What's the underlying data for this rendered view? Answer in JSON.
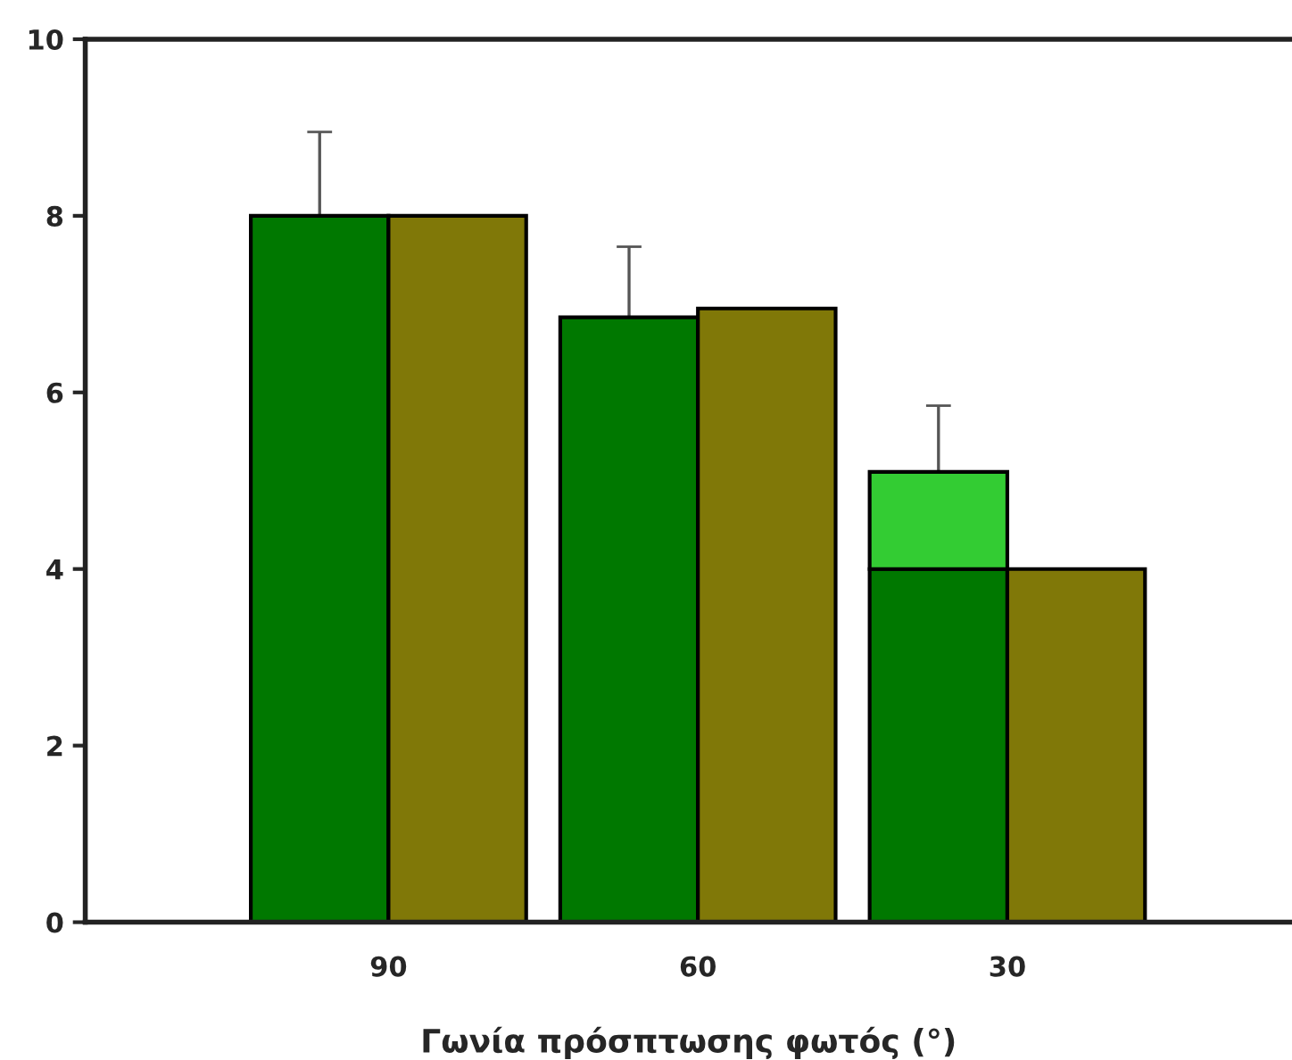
{
  "chart_data": {
    "type": "bar",
    "xlabel": "Γωνία πρόσπτωσης φωτός (°)",
    "categories": [
      "90",
      "60",
      "30"
    ],
    "series": [
      {
        "color": "#007800",
        "values": [
          8.0,
          6.85,
          4.0
        ],
        "errors": [
          [
            8.0,
            8.95
          ],
          [
            6.85,
            7.65
          ],
          null
        ]
      },
      {
        "color": "#807808",
        "values": [
          8.0,
          6.95,
          4.0
        ]
      },
      {
        "color": "#33cc33",
        "values": [
          null,
          null,
          1.1
        ],
        "base": [
          null,
          null,
          4.0
        ],
        "errors": [
          null,
          null,
          [
            5.1,
            5.85
          ]
        ]
      }
    ],
    "ylim": [
      0,
      10
    ],
    "yticks": [
      0,
      2,
      4,
      6,
      8,
      10
    ],
    "grid": false,
    "legend": false
  }
}
